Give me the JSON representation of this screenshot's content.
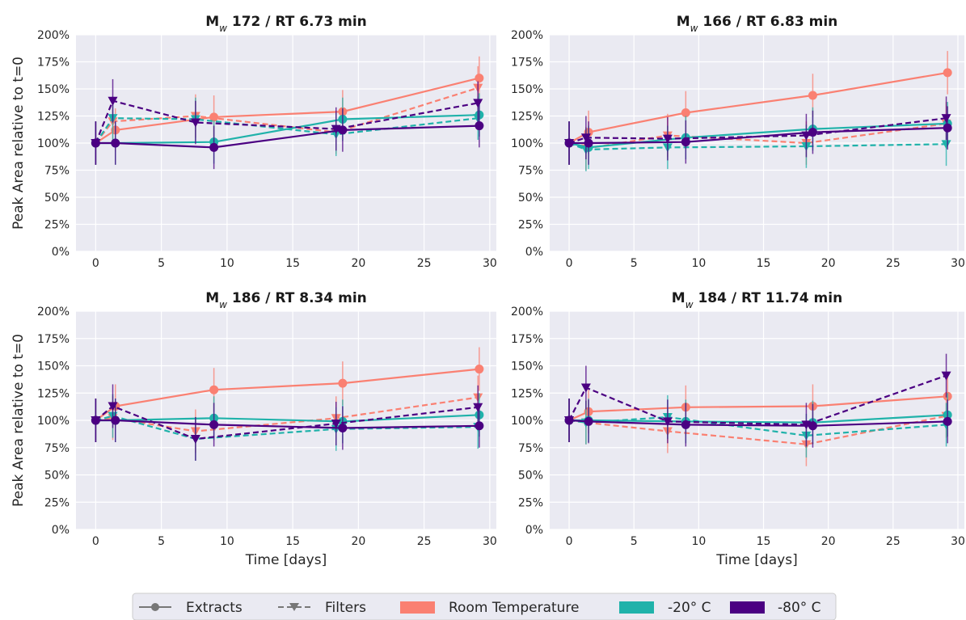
{
  "chart_data": [
    {
      "type": "line",
      "title_base": "M",
      "title_sub": "w",
      "title_rest": " 172 / RT 6.73 min",
      "ylabel": "Peak Area relative to t=0",
      "xlabel": "",
      "xlim": [
        -1.5,
        30.5
      ],
      "ylim": [
        0,
        200
      ],
      "xticks": [
        "0",
        "5",
        "10",
        "15",
        "20",
        "25",
        "30"
      ],
      "yticks": [
        "0%",
        "25%",
        "50%",
        "75%",
        "100%",
        "125%",
        "150%",
        "175%",
        "200%"
      ],
      "series": [
        {
          "group": "rt",
          "kind": "extract",
          "x": [
            0,
            1.5,
            9,
            18.8,
            29.2
          ],
          "y": [
            100,
            112,
            124,
            129,
            160
          ],
          "err": [
            20,
            20,
            20,
            20,
            20
          ]
        },
        {
          "group": "rt",
          "kind": "filter",
          "x": [
            0,
            1.3,
            7.6,
            18.3,
            29.1
          ],
          "y": [
            100,
            120,
            125,
            110,
            151
          ],
          "err": [
            20,
            20,
            20,
            20,
            20
          ]
        },
        {
          "group": "m20",
          "kind": "extract",
          "x": [
            0,
            1.5,
            9,
            18.8,
            29.2
          ],
          "y": [
            100,
            100,
            101,
            122,
            126
          ],
          "err": [
            20,
            20,
            20,
            20,
            20
          ]
        },
        {
          "group": "m20",
          "kind": "filter",
          "x": [
            0,
            1.3,
            7.6,
            18.3,
            29.1
          ],
          "y": [
            100,
            123,
            122,
            108,
            123
          ],
          "err": [
            20,
            20,
            20,
            20,
            20
          ]
        },
        {
          "group": "m80",
          "kind": "extract",
          "x": [
            0,
            1.5,
            9,
            18.8,
            29.2
          ],
          "y": [
            100,
            100,
            96,
            112,
            116
          ],
          "err": [
            20,
            20,
            20,
            20,
            20
          ]
        },
        {
          "group": "m80",
          "kind": "filter",
          "x": [
            0,
            1.3,
            7.6,
            18.3,
            29.1
          ],
          "y": [
            100,
            139,
            119,
            113,
            137
          ],
          "err": [
            20,
            20,
            20,
            20,
            20
          ]
        }
      ]
    },
    {
      "type": "line",
      "title_base": "M",
      "title_sub": "w",
      "title_rest": " 166 / RT 6.83 min",
      "ylabel": "",
      "xlabel": "",
      "xlim": [
        -1.5,
        30.5
      ],
      "ylim": [
        0,
        200
      ],
      "xticks": [
        "0",
        "5",
        "10",
        "15",
        "20",
        "25",
        "30"
      ],
      "yticks": [
        "0%",
        "25%",
        "50%",
        "75%",
        "100%",
        "125%",
        "150%",
        "175%",
        "200%"
      ],
      "series": [
        {
          "group": "rt",
          "kind": "extract",
          "x": [
            0,
            1.5,
            9,
            18.8,
            29.2
          ],
          "y": [
            100,
            110,
            128,
            144,
            165
          ],
          "err": [
            20,
            20,
            20,
            20,
            20
          ]
        },
        {
          "group": "rt",
          "kind": "filter",
          "x": [
            0,
            1.3,
            7.6,
            18.3,
            29.1
          ],
          "y": [
            100,
            95,
            107,
            100,
            118
          ],
          "err": [
            20,
            20,
            20,
            20,
            20
          ]
        },
        {
          "group": "m20",
          "kind": "extract",
          "x": [
            0,
            1.5,
            9,
            18.8,
            29.2
          ],
          "y": [
            100,
            96,
            105,
            113,
            118
          ],
          "err": [
            20,
            20,
            20,
            20,
            20
          ]
        },
        {
          "group": "m20",
          "kind": "filter",
          "x": [
            0,
            1.3,
            7.6,
            18.3,
            29.1
          ],
          "y": [
            100,
            94,
            96,
            97,
            99
          ],
          "err": [
            20,
            20,
            20,
            20,
            20
          ]
        },
        {
          "group": "m80",
          "kind": "extract",
          "x": [
            0,
            1.5,
            9,
            18.8,
            29.2
          ],
          "y": [
            100,
            100,
            101,
            110,
            114
          ],
          "err": [
            20,
            20,
            20,
            20,
            20
          ]
        },
        {
          "group": "m80",
          "kind": "filter",
          "x": [
            0,
            1.3,
            7.6,
            18.3,
            29.1
          ],
          "y": [
            100,
            105,
            104,
            107,
            123
          ],
          "err": [
            20,
            20,
            20,
            20,
            20
          ]
        }
      ]
    },
    {
      "type": "line",
      "title_base": "M",
      "title_sub": "w",
      "title_rest": " 186 / RT 8.34 min",
      "ylabel": "Peak Area relative to t=0",
      "xlabel": "Time [days]",
      "xlim": [
        -1.5,
        30.5
      ],
      "ylim": [
        0,
        200
      ],
      "xticks": [
        "0",
        "5",
        "10",
        "15",
        "20",
        "25",
        "30"
      ],
      "yticks": [
        "0%",
        "25%",
        "50%",
        "75%",
        "100%",
        "125%",
        "150%",
        "175%",
        "200%"
      ],
      "series": [
        {
          "group": "rt",
          "kind": "extract",
          "x": [
            0,
            1.5,
            9,
            18.8,
            29.2
          ],
          "y": [
            100,
            113,
            128,
            134,
            147
          ],
          "err": [
            20,
            20,
            20,
            20,
            20
          ]
        },
        {
          "group": "rt",
          "kind": "filter",
          "x": [
            0,
            1.3,
            7.6,
            18.3,
            29.1
          ],
          "y": [
            100,
            102,
            90,
            102,
            121
          ],
          "err": [
            20,
            20,
            20,
            20,
            20
          ]
        },
        {
          "group": "m20",
          "kind": "extract",
          "x": [
            0,
            1.5,
            9,
            18.8,
            29.2
          ],
          "y": [
            100,
            100,
            102,
            99,
            105
          ],
          "err": [
            20,
            20,
            20,
            20,
            20
          ]
        },
        {
          "group": "m20",
          "kind": "filter",
          "x": [
            0,
            1.3,
            7.6,
            18.3,
            29.1
          ],
          "y": [
            100,
            104,
            83,
            92,
            94
          ],
          "err": [
            20,
            20,
            20,
            20,
            20
          ]
        },
        {
          "group": "m80",
          "kind": "extract",
          "x": [
            0,
            1.5,
            9,
            18.8,
            29.2
          ],
          "y": [
            100,
            100,
            96,
            93,
            95
          ],
          "err": [
            20,
            20,
            20,
            20,
            20
          ]
        },
        {
          "group": "m80",
          "kind": "filter",
          "x": [
            0,
            1.3,
            7.6,
            18.3,
            29.1
          ],
          "y": [
            100,
            113,
            83,
            97,
            112
          ],
          "err": [
            20,
            20,
            20,
            20,
            20
          ]
        }
      ]
    },
    {
      "type": "line",
      "title_base": "M",
      "title_sub": "w",
      "title_rest": " 184 / RT 11.74 min",
      "ylabel": "",
      "xlabel": "Time [days]",
      "xlim": [
        -1.5,
        30.5
      ],
      "ylim": [
        0,
        200
      ],
      "xticks": [
        "0",
        "5",
        "10",
        "15",
        "20",
        "25",
        "30"
      ],
      "yticks": [
        "0%",
        "25%",
        "50%",
        "75%",
        "100%",
        "125%",
        "150%",
        "175%",
        "200%"
      ],
      "series": [
        {
          "group": "rt",
          "kind": "extract",
          "x": [
            0,
            1.5,
            9,
            18.8,
            29.2
          ],
          "y": [
            100,
            108,
            112,
            113,
            122
          ],
          "err": [
            20,
            20,
            20,
            20,
            20
          ]
        },
        {
          "group": "rt",
          "kind": "filter",
          "x": [
            0,
            1.3,
            7.6,
            18.3,
            29.1
          ],
          "y": [
            100,
            98,
            90,
            78,
            104
          ],
          "err": [
            20,
            20,
            20,
            20,
            20
          ]
        },
        {
          "group": "m20",
          "kind": "extract",
          "x": [
            0,
            1.5,
            9,
            18.8,
            29.2
          ],
          "y": [
            100,
            100,
            99,
            98,
            105
          ],
          "err": [
            20,
            20,
            20,
            20,
            20
          ]
        },
        {
          "group": "m20",
          "kind": "filter",
          "x": [
            0,
            1.3,
            7.6,
            18.3,
            29.1
          ],
          "y": [
            100,
            98,
            103,
            86,
            96
          ],
          "err": [
            20,
            20,
            20,
            20,
            20
          ]
        },
        {
          "group": "m80",
          "kind": "extract",
          "x": [
            0,
            1.5,
            9,
            18.8,
            29.2
          ],
          "y": [
            100,
            99,
            96,
            95,
            99
          ],
          "err": [
            20,
            20,
            20,
            20,
            20
          ]
        },
        {
          "group": "m80",
          "kind": "filter",
          "x": [
            0,
            1.3,
            7.6,
            18.3,
            29.1
          ],
          "y": [
            100,
            130,
            99,
            96,
            141
          ],
          "err": [
            20,
            20,
            20,
            20,
            20
          ]
        }
      ]
    }
  ],
  "groups": {
    "rt": {
      "label": "Room Temperature",
      "color": "#fa8072"
    },
    "m20": {
      "label": "-20° C",
      "color": "#20b2aa"
    },
    "m80": {
      "label": "-80° C",
      "color": "#4b0082"
    }
  },
  "legend": {
    "placement": "bottom-center",
    "extracts_label": "Extracts",
    "filters_label": "Filters",
    "rt_label": "Room Temperature",
    "m20_label": "-20° C",
    "m80_label": "-80° C"
  },
  "style": {
    "plot_bg": "#eaeaf2",
    "grid": "#ffffff",
    "grid_on": true
  }
}
